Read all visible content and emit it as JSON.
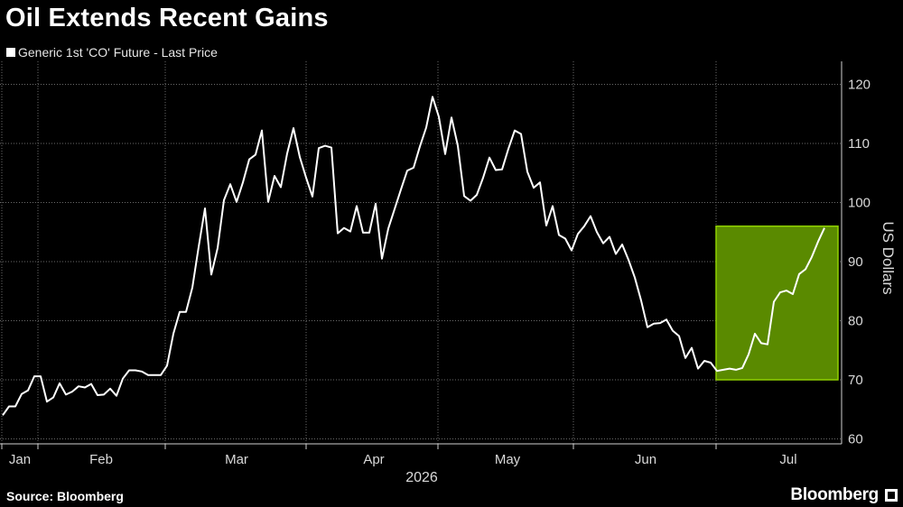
{
  "header": {
    "title": "Oil Extends Recent Gains"
  },
  "legend": {
    "label": "Generic 1st 'CO' Future - Last Price"
  },
  "footer": {
    "source": "Source: Bloomberg",
    "brand": "Bloomberg"
  },
  "colors": {
    "background": "#000000",
    "line": "#ffffff",
    "highlight_fill": "#5a8a00",
    "highlight_stroke": "#8fd100",
    "grid": "#6a6a6a"
  },
  "chart_data": {
    "type": "line",
    "title": "Oil Extends Recent Gains",
    "ylabel": "US Dollars",
    "xlabel": "2026",
    "ylim": [
      60,
      120
    ],
    "yticks": [
      60,
      70,
      80,
      90,
      100,
      110,
      120
    ],
    "grid": true,
    "x_ticks": [
      "Jan",
      "Feb",
      "Mar",
      "Apr",
      "May",
      "Jun",
      "Jul"
    ],
    "series": [
      {
        "name": "Generic 1st 'CO' Future - Last Price",
        "values": [
          64.0,
          65.5,
          65.5,
          67.6,
          68.2,
          70.6,
          70.6,
          66.3,
          67.0,
          69.4,
          67.5,
          68.0,
          68.9,
          68.7,
          69.3,
          67.4,
          67.5,
          68.5,
          67.3,
          70.2,
          71.6,
          71.6,
          71.4,
          70.8,
          70.8,
          70.8,
          72.4,
          77.8,
          81.5,
          81.5,
          85.6,
          92.5,
          99.0,
          87.8,
          92.3,
          100.4,
          103.1,
          100.1,
          103.4,
          107.3,
          108.1,
          112.2,
          100.1,
          104.5,
          102.6,
          108.3,
          112.6,
          107.7,
          104.2,
          101.0,
          109.2,
          109.6,
          109.3,
          94.8,
          95.7,
          95.1,
          99.4,
          94.9,
          94.9,
          99.8,
          90.5,
          95.6,
          98.9,
          102.2,
          105.4,
          105.9,
          109.5,
          112.7,
          117.9,
          114.5,
          108.2,
          114.4,
          109.6,
          101.1,
          100.3,
          101.3,
          104.2,
          107.6,
          105.5,
          105.6,
          109.1,
          112.2,
          111.6,
          105.2,
          102.5,
          103.4,
          96.1,
          99.4,
          94.5,
          93.9,
          91.9,
          94.7,
          96.0,
          97.7,
          95.0,
          93.1,
          94.2,
          91.3,
          92.9,
          90.3,
          87.3,
          83.4,
          78.9,
          79.5,
          79.6,
          80.2,
          78.3,
          77.4,
          73.7,
          75.4,
          71.9,
          73.2,
          72.9,
          71.5,
          71.7,
          71.9,
          71.7,
          72.0,
          74.3,
          77.8,
          76.2,
          76.0,
          83.2,
          84.8,
          85.1,
          84.5,
          87.9,
          88.7,
          90.8,
          93.4,
          95.7
        ]
      }
    ],
    "annotations": [
      {
        "type": "highlight-box",
        "x_start": 114,
        "x_end": 132,
        "y_min": 70,
        "y_max": 96
      }
    ]
  }
}
